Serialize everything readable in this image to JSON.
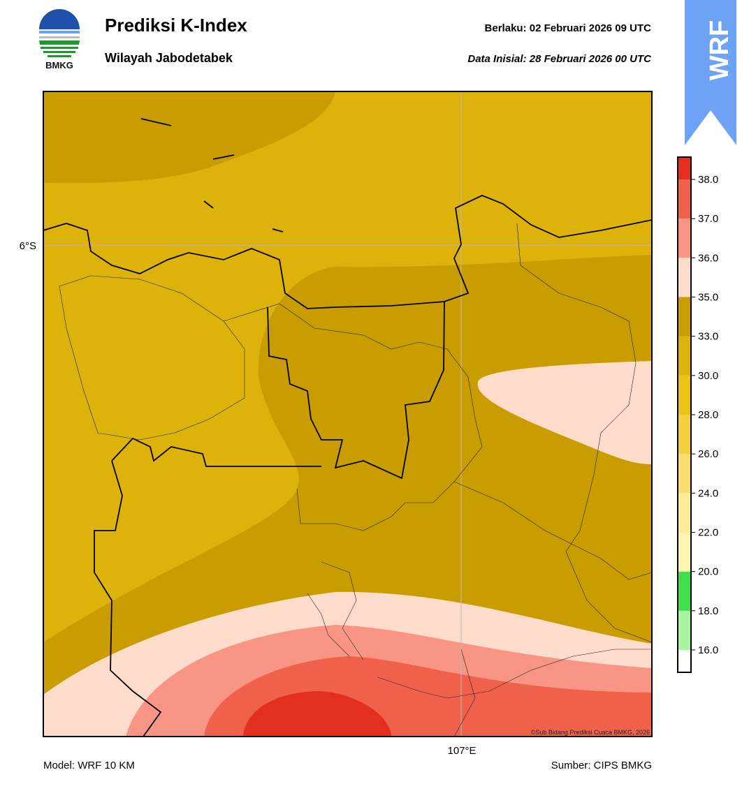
{
  "header": {
    "logo_text": "BMKG",
    "title": "Prediksi K-Index",
    "subtitle": "Wilayah Jabodetabek",
    "valid": "Berlaku:  02 Februari 2026 09 UTC",
    "initial": "Data Inisial:  28 Februari 2026 00 UTC",
    "badge": "WRF"
  },
  "map": {
    "lat_label": "6°S",
    "lon_label": "107°E",
    "credit": "©Sub Bidang Prediksi Cuaca BMKG, 2026"
  },
  "colorbar": {
    "ticks": [
      {
        "value": 16,
        "label": "16.0"
      },
      {
        "value": 18,
        "label": "18.0"
      },
      {
        "value": 20,
        "label": "20.0"
      },
      {
        "value": 22,
        "label": "22.0"
      },
      {
        "value": 24,
        "label": "24.0"
      },
      {
        "value": 26,
        "label": "26.0"
      },
      {
        "value": 28,
        "label": "28.0"
      },
      {
        "value": 30,
        "label": "30.0"
      },
      {
        "value": 33,
        "label": "33.0"
      },
      {
        "value": 35,
        "label": "35.0"
      },
      {
        "value": 36,
        "label": "36.0"
      },
      {
        "value": 37,
        "label": "37.0"
      },
      {
        "value": 38,
        "label": "38.0"
      }
    ],
    "colors": [
      "#ffffff",
      "#a6f5a0",
      "#3fe04a",
      "#fff5b0",
      "#ffec99",
      "#fbdc6e",
      "#f4cf3e",
      "#ebc417",
      "#dcb20b",
      "#c99c00",
      "#fddccb",
      "#f99584",
      "#f0614c",
      "#e32f1f"
    ]
  },
  "footer": {
    "model": "Model: WRF 10 KM",
    "source": "Sumber: CIPS BMKG"
  }
}
